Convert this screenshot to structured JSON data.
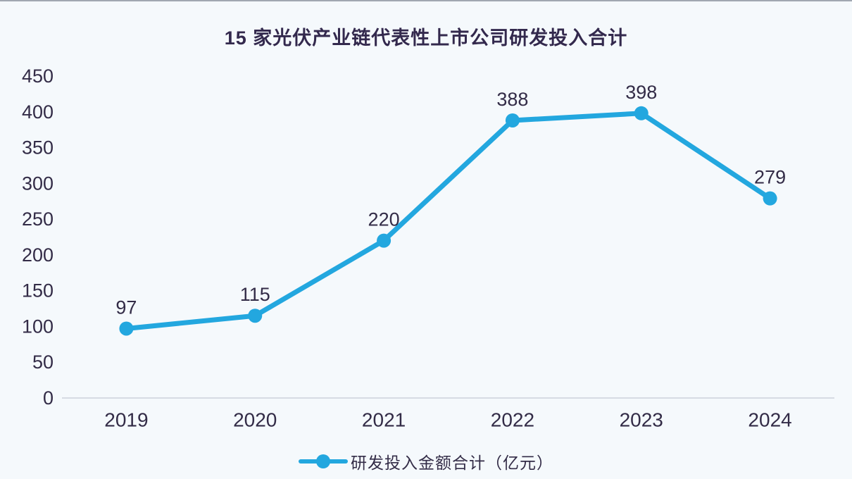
{
  "page": {
    "background": "#F5F9FC"
  },
  "chart_data": {
    "type": "line",
    "title": "15 家光伏产业链代表性上市公司研发投入合计",
    "categories": [
      "2019",
      "2020",
      "2021",
      "2022",
      "2023",
      "2024"
    ],
    "series": [
      {
        "name": "研发投入金额合计（亿元）",
        "values": [
          97,
          115,
          220,
          388,
          398,
          279
        ]
      }
    ],
    "xlabel": "",
    "ylabel": "",
    "ylim": [
      0,
      450
    ],
    "yticks": [
      0,
      50,
      100,
      150,
      200,
      250,
      300,
      350,
      400,
      450
    ],
    "grid": false,
    "data_labels": true,
    "legend_position": "bottom",
    "colors": {
      "line": "#23A7DF",
      "marker": "#23A7DF",
      "text": "#332C47",
      "title_text": "#33294D",
      "axis_line": "#D6DBE3",
      "background": "#F5F9FC"
    }
  }
}
